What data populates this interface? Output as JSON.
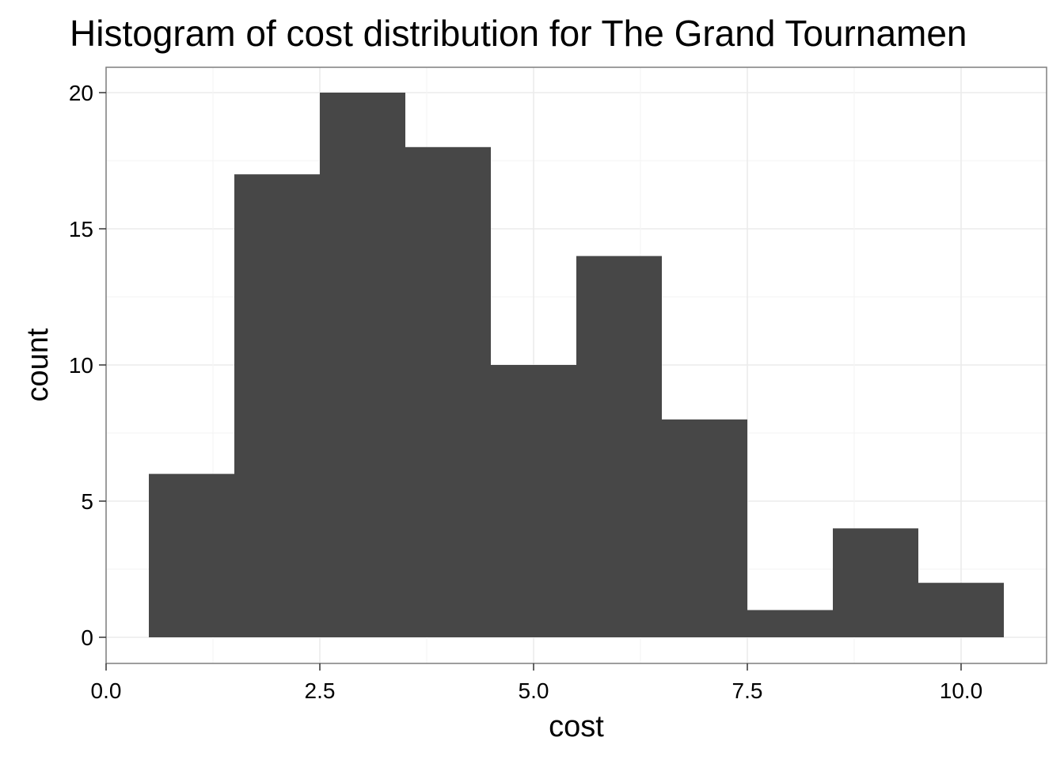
{
  "chart_data": {
    "type": "bar",
    "subtype": "histogram",
    "title": "Histogram of cost distribution for The Grand Tournamen",
    "xlabel": "cost",
    "ylabel": "count",
    "bins": [
      {
        "x0": 0.5,
        "x1": 1.5,
        "count": 6
      },
      {
        "x0": 1.5,
        "x1": 2.5,
        "count": 17
      },
      {
        "x0": 2.5,
        "x1": 3.5,
        "count": 20
      },
      {
        "x0": 3.5,
        "x1": 4.5,
        "count": 18
      },
      {
        "x0": 4.5,
        "x1": 5.5,
        "count": 10
      },
      {
        "x0": 5.5,
        "x1": 6.5,
        "count": 14
      },
      {
        "x0": 6.5,
        "x1": 7.5,
        "count": 8
      },
      {
        "x0": 7.5,
        "x1": 8.5,
        "count": 1
      },
      {
        "x0": 8.5,
        "x1": 9.5,
        "count": 4
      },
      {
        "x0": 9.5,
        "x1": 10.5,
        "count": 2
      }
    ],
    "xlim": [
      0.0,
      10.5
    ],
    "ylim": [
      0,
      20
    ],
    "x_ticks": [
      0.0,
      2.5,
      5.0,
      7.5,
      10.0
    ],
    "x_tick_labels": [
      "0.0",
      "2.5",
      "5.0",
      "7.5",
      "10.0"
    ],
    "y_ticks": [
      0,
      5,
      10,
      15,
      20
    ],
    "y_tick_labels": [
      "0",
      "5",
      "10",
      "15",
      "20"
    ],
    "grid": true,
    "bar_color": "#474747",
    "grid_color": "#ebebeb",
    "panel_border_color": "#7f7f7f"
  }
}
